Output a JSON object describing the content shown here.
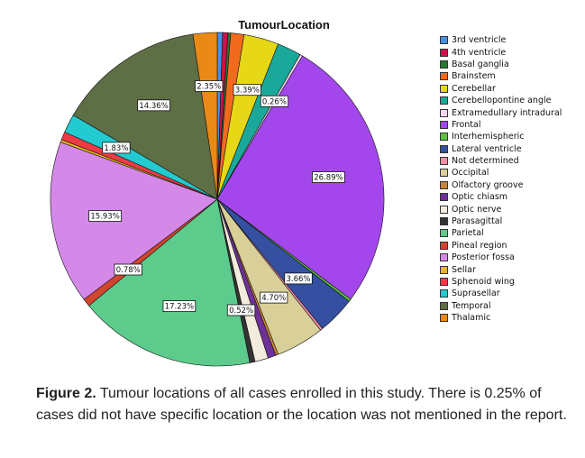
{
  "chart_data": {
    "type": "pie",
    "title": "TumourLocation",
    "legend_position": "right",
    "slices": [
      {
        "label": "3rd ventricle",
        "value": 0.52,
        "color": "#4a90e2",
        "data_label": ""
      },
      {
        "label": "4th ventricle",
        "value": 0.52,
        "color": "#d0104c",
        "data_label": ""
      },
      {
        "label": "Basal ganglia",
        "value": 0.26,
        "color": "#1f7a2e",
        "data_label": ""
      },
      {
        "label": "Brainstem",
        "value": 1.3,
        "color": "#f26b1d",
        "data_label": ""
      },
      {
        "label": "Cerebellar",
        "value": 3.39,
        "color": "#e6d816",
        "data_label": "3.39%"
      },
      {
        "label": "Cerebellopontine angle",
        "value": 2.35,
        "color": "#1aa89a",
        "data_label": ""
      },
      {
        "label": "Extramedullary intradural",
        "value": 0.26,
        "color": "#f6d6ef",
        "data_label": "0.26%"
      },
      {
        "label": "Frontal",
        "value": 26.89,
        "color": "#a347ec",
        "data_label": "26.89%"
      },
      {
        "label": "Interhemispheric",
        "value": 0.26,
        "color": "#5cc23c",
        "data_label": ""
      },
      {
        "label": "Lateral ventricle",
        "value": 3.66,
        "color": "#3550a0",
        "data_label": "3.66%"
      },
      {
        "label": "Not determined",
        "value": 0.25,
        "color": "#f58fa8",
        "data_label": ""
      },
      {
        "label": "Occipital",
        "value": 4.7,
        "color": "#d9cf98",
        "data_label": "4.70%"
      },
      {
        "label": "Olfactory groove",
        "value": 0.26,
        "color": "#c9843a",
        "data_label": ""
      },
      {
        "label": "Optic chiasm",
        "value": 0.78,
        "color": "#6e3197",
        "data_label": ""
      },
      {
        "label": "Optic nerve",
        "value": 1.3,
        "color": "#f3ecdc",
        "data_label": ""
      },
      {
        "label": "Parasagittal",
        "value": 0.52,
        "color": "#333333",
        "data_label": "0.52%"
      },
      {
        "label": "Parietal",
        "value": 17.23,
        "color": "#5ccb8c",
        "data_label": "17.23%"
      },
      {
        "label": "Pineal region",
        "value": 0.78,
        "color": "#d1452f",
        "data_label": "0.78%"
      },
      {
        "label": "Posterior fossa",
        "value": 15.93,
        "color": "#d488e8",
        "data_label": "15.93%"
      },
      {
        "label": "Sellar",
        "value": 0.26,
        "color": "#e6b81e",
        "data_label": ""
      },
      {
        "label": "Sphenoid wing",
        "value": 0.78,
        "color": "#ef3b45",
        "data_label": ""
      },
      {
        "label": "Suprasellar",
        "value": 1.83,
        "color": "#22cbd0",
        "data_label": "1.83%"
      },
      {
        "label": "Temporal",
        "value": 14.36,
        "color": "#5e6e45",
        "data_label": "14.36%"
      },
      {
        "label": "Thalamic",
        "value": 2.35,
        "color": "#e98a16",
        "data_label": "2.35%"
      }
    ]
  },
  "caption": {
    "label": "Figure 2.",
    "text": " Tumour locations of all cases enrolled in this study. There is 0.25% of cases did not have specific location or the location was not mentioned in the report."
  }
}
